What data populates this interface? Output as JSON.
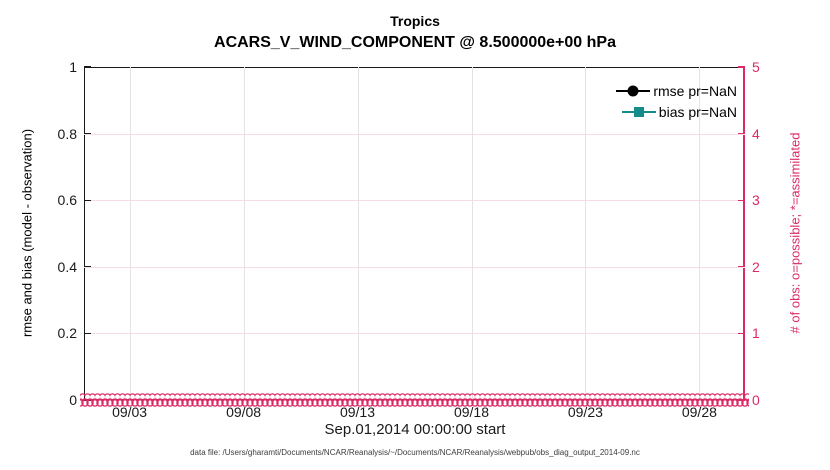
{
  "chart_data": {
    "type": "line",
    "title": "Tropics",
    "subtitle": "ACARS_V_WIND_COMPONENT @ 8.500000e+00 hPa",
    "xlabel": "Sep.01,2014 00:00:00 start",
    "grid": true,
    "legend_position": "top-right, no box",
    "left_axis": {
      "label": "rmse and bias (model - observation)",
      "ticks": [
        0,
        0.2,
        0.4,
        0.6,
        0.8,
        1
      ],
      "lim": [
        0,
        1
      ],
      "color": "#1a1a1a"
    },
    "right_axis": {
      "label": "# of obs: o=possible; *=assimilated",
      "ticks": [
        0,
        1,
        2,
        3,
        4,
        5
      ],
      "lim": [
        0,
        5
      ],
      "color": "#DB2B67"
    },
    "x_axis": {
      "tick_labels": [
        "09/03",
        "09/08",
        "09/13",
        "09/18",
        "09/23",
        "09/28"
      ],
      "tick_days": [
        3,
        8,
        13,
        18,
        23,
        28
      ],
      "lim_days": [
        1,
        30
      ],
      "lim_note_visible_text": "Sep.01,2014 00:00:00 start"
    },
    "legend": [
      {
        "label": "rmse pr=NaN",
        "color": "#000000",
        "marker": "circle"
      },
      {
        "label": "bias pr=NaN",
        "color": "#158C8C",
        "marker": "square"
      }
    ],
    "series": [
      {
        "name": "rmse pr=NaN",
        "axis": "left",
        "values": []
      },
      {
        "name": "bias pr=NaN",
        "axis": "left",
        "values": []
      },
      {
        "name": "# of obs possible (o markers)",
        "axis": "right",
        "constant_value": 0
      },
      {
        "name": "# of obs assimilated (* markers)",
        "axis": "right",
        "constant_value": 0
      }
    ]
  },
  "caption": "data file: /Users/gharamti/Documents/NCAR/Reanalysis/~/Documents/NCAR/Reanalysis/webpub/obs_diag_output_2014-09.nc",
  "colors": {
    "pink": "#DB2B67",
    "grid_pink": "#F7DCE6",
    "grid_gray": "#E3E3E3",
    "teal": "#158C8C",
    "black": "#000000"
  }
}
